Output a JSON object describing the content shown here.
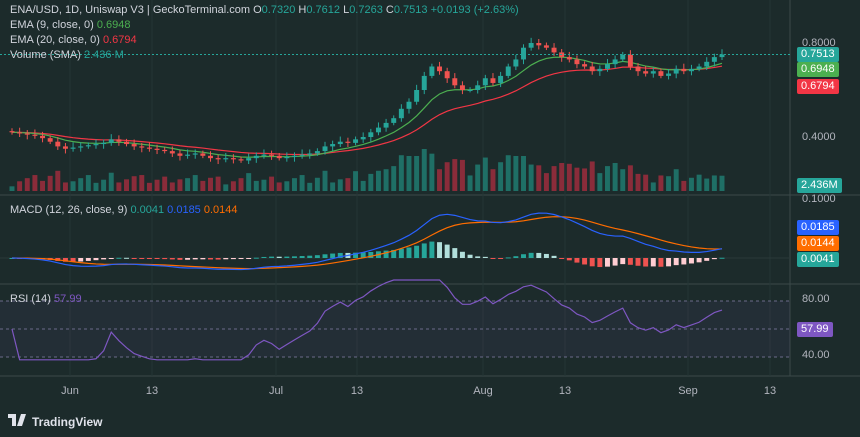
{
  "header": {
    "symbol": "ENA/USD, 1D, Uniswap V3 | GeckoTerminal.com",
    "o_label": "O",
    "o_val": "0.7320",
    "h_label": "H",
    "h_val": "0.7612",
    "l_label": "L",
    "l_val": "0.7263",
    "c_label": "C",
    "c_val": "0.7513",
    "change": "+0.0193 (+2.63%)"
  },
  "legend": {
    "ema9_label": "EMA (9, close, 0)",
    "ema9_val": "0.6948",
    "ema20_label": "EMA (20, close, 0)",
    "ema20_val": "0.6794",
    "vol_label": "Volume (SMA)",
    "vol_val": "2.436 M"
  },
  "macd_legend": {
    "label": "MACD (12, 26, close, 9)",
    "hist": "0.0041",
    "macd": "0.0185",
    "signal": "0.0144"
  },
  "rsi_legend": {
    "label": "RSI (14)",
    "val": "57.99"
  },
  "price_axis": {
    "t1": "0.8000",
    "t2": "0.4000",
    "price_badge": "0.7513",
    "ema9_badge": "0.6948",
    "ema20_badge": "0.6794",
    "vol_badge": "2.436M"
  },
  "macd_axis": {
    "t1": "0.1000",
    "macd_badge": "0.0185",
    "signal_badge": "0.0144",
    "hist_badge": "0.0041"
  },
  "rsi_axis": {
    "t1": "80.00",
    "t2": "40.00",
    "badge": "57.99"
  },
  "x_ticks": [
    "Jun",
    "13",
    "Jul",
    "13",
    "Aug",
    "13",
    "Sep",
    "13"
  ],
  "brand": "TradingView",
  "colors": {
    "up": "#26a69a",
    "down": "#ef5350",
    "ema9": "#4caf50",
    "ema20": "#f23645",
    "macd": "#2962ff",
    "signal": "#ff6d00",
    "rsi": "#7e57c2"
  },
  "chart_data": {
    "type": "candlestick",
    "title": "ENA/USD, 1D, Uniswap V3",
    "closes": [
      0.42,
      0.415,
      0.41,
      0.405,
      0.395,
      0.38,
      0.36,
      0.35,
      0.355,
      0.36,
      0.365,
      0.37,
      0.375,
      0.39,
      0.38,
      0.37,
      0.36,
      0.355,
      0.35,
      0.345,
      0.34,
      0.33,
      0.32,
      0.325,
      0.33,
      0.32,
      0.31,
      0.305,
      0.31,
      0.305,
      0.3,
      0.31,
      0.32,
      0.325,
      0.32,
      0.31,
      0.315,
      0.32,
      0.325,
      0.33,
      0.34,
      0.36,
      0.37,
      0.38,
      0.375,
      0.39,
      0.4,
      0.42,
      0.44,
      0.46,
      0.48,
      0.52,
      0.55,
      0.6,
      0.66,
      0.7,
      0.68,
      0.65,
      0.62,
      0.6,
      0.6,
      0.62,
      0.65,
      0.63,
      0.66,
      0.7,
      0.73,
      0.78,
      0.8,
      0.79,
      0.78,
      0.76,
      0.74,
      0.73,
      0.71,
      0.7,
      0.68,
      0.69,
      0.71,
      0.73,
      0.75,
      0.7,
      0.68,
      0.67,
      0.68,
      0.66,
      0.67,
      0.69,
      0.68,
      0.69,
      0.7,
      0.72,
      0.74,
      0.7513
    ],
    "ema9_last": 0.6948,
    "ema20_last": 0.6794,
    "volume_last": "2.436M",
    "macd": {
      "macd": 0.0185,
      "signal": 0.0144,
      "hist": 0.0041
    },
    "rsi": 57.99,
    "rsi_levels": [
      70,
      50,
      30
    ]
  }
}
